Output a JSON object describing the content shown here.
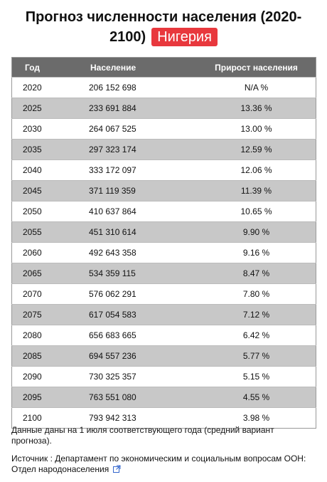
{
  "header": {
    "title": "Прогноз численности населения (2020-2100)",
    "badge": "Нигерия"
  },
  "table": {
    "columns": [
      "Год",
      "Население",
      "Прирост населения"
    ],
    "rows": [
      [
        "2020",
        "206 152 698",
        "N/A %"
      ],
      [
        "2025",
        "233 691 884",
        "13.36 %"
      ],
      [
        "2030",
        "264 067 525",
        "13.00 %"
      ],
      [
        "2035",
        "297 323 174",
        "12.59 %"
      ],
      [
        "2040",
        "333 172 097",
        "12.06 %"
      ],
      [
        "2045",
        "371 119 359",
        "11.39 %"
      ],
      [
        "2050",
        "410 637 864",
        "10.65 %"
      ],
      [
        "2055",
        "451 310 614",
        "9.90 %"
      ],
      [
        "2060",
        "492 643 358",
        "9.16 %"
      ],
      [
        "2065",
        "534 359 115",
        "8.47 %"
      ],
      [
        "2070",
        "576 062 291",
        "7.80 %"
      ],
      [
        "2075",
        "617 054 583",
        "7.12 %"
      ],
      [
        "2080",
        "656 683 665",
        "6.42 %"
      ],
      [
        "2085",
        "694 557 236",
        "5.77 %"
      ],
      [
        "2090",
        "730 325 357",
        "5.15 %"
      ],
      [
        "2095",
        "763 551 080",
        "4.55 %"
      ],
      [
        "2100",
        "793 942 313",
        "3.98 %"
      ]
    ]
  },
  "notes": {
    "date_note": "Данные даны на 1 июля соответствующего года (средний вариант прогноза).",
    "source": "Источник : Департамент по экономическим и социальным вопросам ООН: Отдел народонаселения"
  }
}
